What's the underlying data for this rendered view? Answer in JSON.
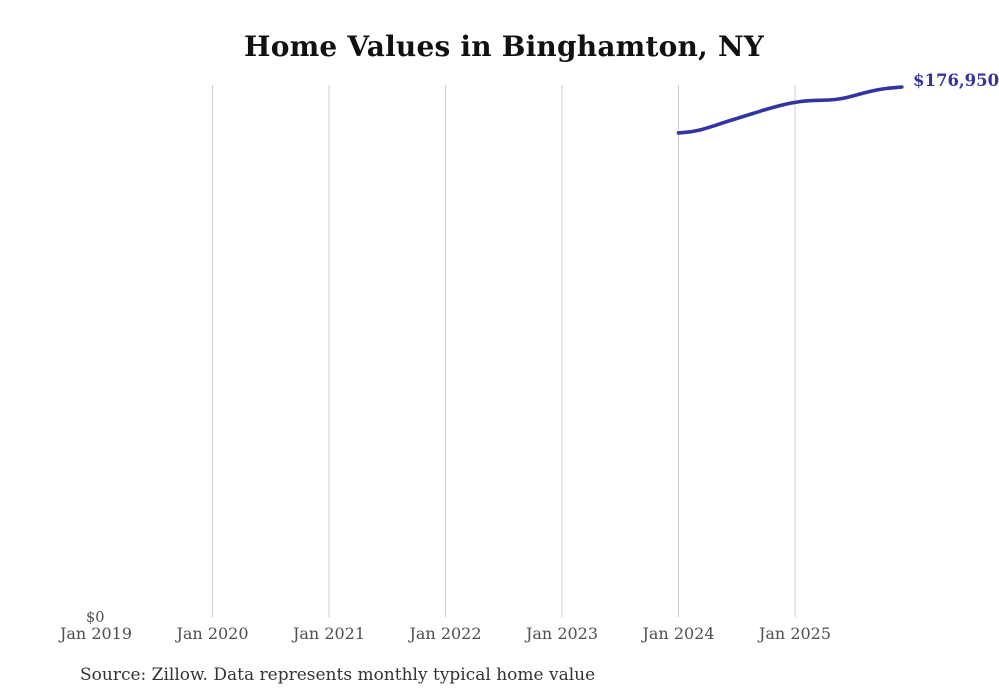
{
  "header": {
    "title": "Home Values in Binghamton, NY"
  },
  "chart_data": {
    "type": "line",
    "title": "Home Values in Binghamton, NY",
    "x_tick_labels": [
      "Jan 2019",
      "Jan 2020",
      "Jan 2021",
      "Jan 2022",
      "Jan 2023",
      "Jan 2024",
      "Jan 2025"
    ],
    "y_zero_label": "$0",
    "latest_value_label": "$176,950",
    "series": [
      {
        "name": "Monthly typical home value",
        "x": [
          "2024-01",
          "2024-02",
          "2024-03",
          "2024-04",
          "2024-05",
          "2024-06",
          "2024-07",
          "2024-08",
          "2024-09",
          "2024-10",
          "2024-11",
          "2024-12",
          "2025-01",
          "2025-02",
          "2025-03",
          "2025-04",
          "2025-05",
          "2025-06",
          "2025-07",
          "2025-08",
          "2025-09",
          "2025-10",
          "2025-11",
          "2025-12"
        ],
        "values": [
          161700,
          161900,
          162500,
          163400,
          164400,
          165500,
          166500,
          167500,
          168500,
          169500,
          170400,
          171200,
          171900,
          172300,
          172500,
          172600,
          172700,
          173200,
          174000,
          174900,
          175700,
          176300,
          176700,
          176950
        ]
      }
    ],
    "ylim": [
      0,
      180000
    ],
    "grid": "vertical-only",
    "legend": "none",
    "line_color": "#3434a0",
    "gridline_color": "#cccccc"
  },
  "footer": {
    "source_note": "Source: Zillow. Data represents monthly typical home value"
  }
}
